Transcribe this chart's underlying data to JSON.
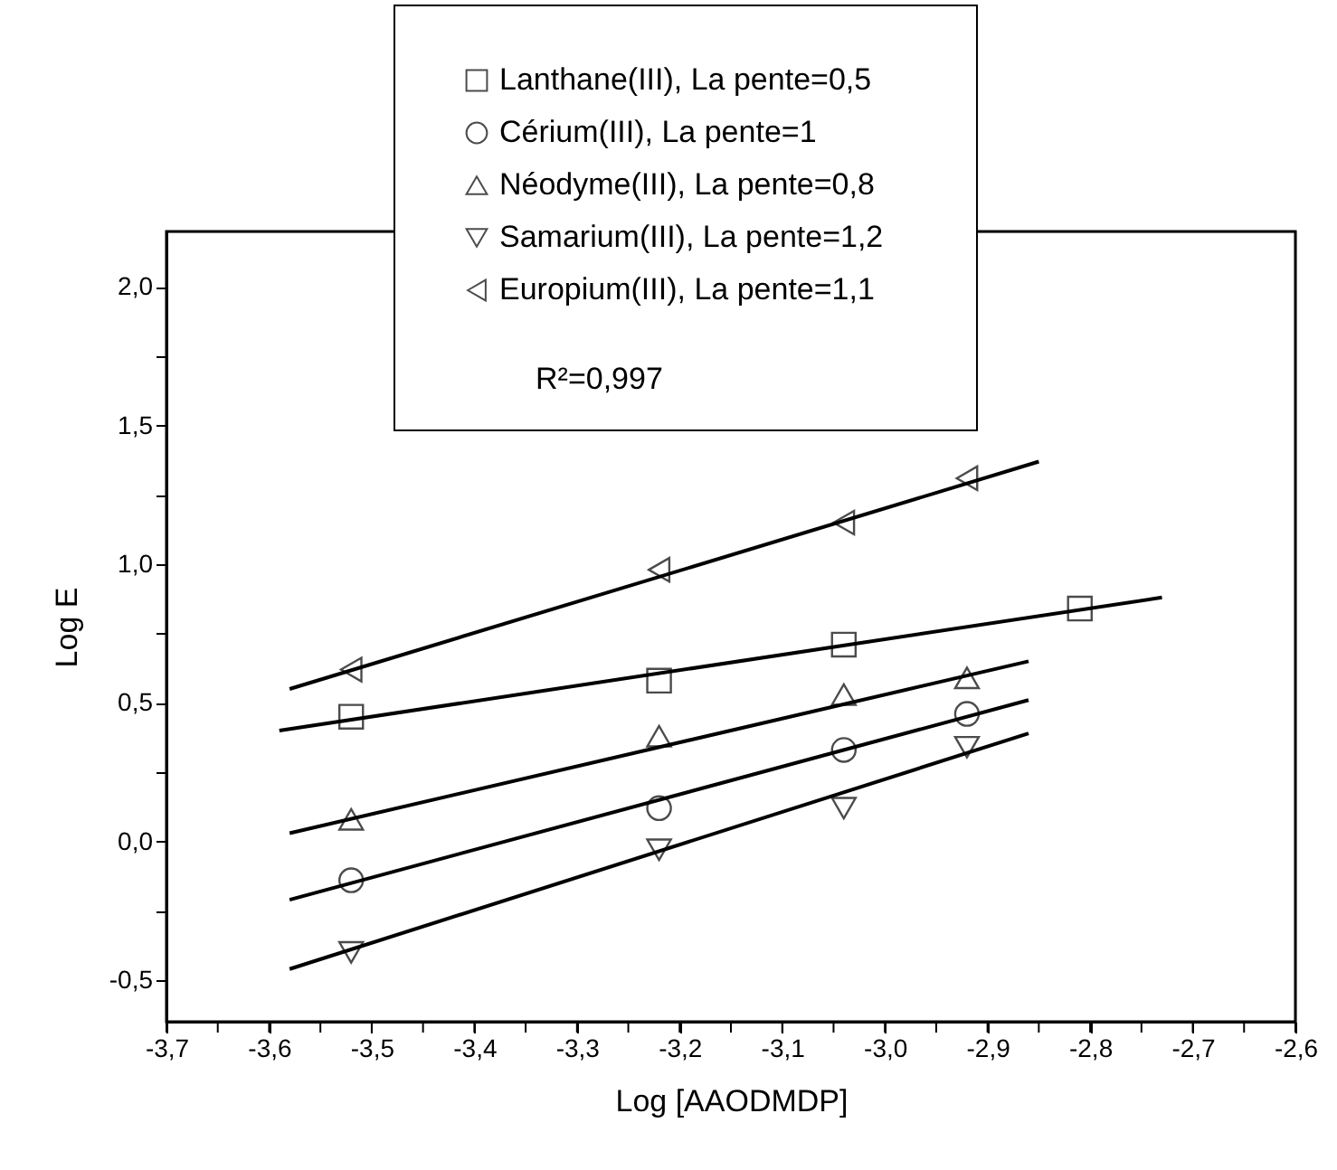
{
  "chart_data": {
    "type": "scatter",
    "xlabel": "Log [AAODMDP]",
    "ylabel": "Log E",
    "xlim": [
      -3.7,
      -2.6
    ],
    "ylim": [
      -0.65,
      2.2
    ],
    "xticks": [
      {
        "value": -3.7,
        "label": "-3,7"
      },
      {
        "value": -3.65,
        "label": null
      },
      {
        "value": -3.6,
        "label": "-3,6"
      },
      {
        "value": -3.55,
        "label": null
      },
      {
        "value": -3.5,
        "label": "-3,5"
      },
      {
        "value": -3.45,
        "label": null
      },
      {
        "value": -3.4,
        "label": "-3,4"
      },
      {
        "value": -3.35,
        "label": null
      },
      {
        "value": -3.3,
        "label": "-3,3"
      },
      {
        "value": -3.25,
        "label": null
      },
      {
        "value": -3.2,
        "label": "-3,2"
      },
      {
        "value": -3.15,
        "label": null
      },
      {
        "value": -3.1,
        "label": "-3,1"
      },
      {
        "value": -3.05,
        "label": null
      },
      {
        "value": -3.0,
        "label": "-3,0"
      },
      {
        "value": -2.95,
        "label": null
      },
      {
        "value": -2.9,
        "label": "-2,9"
      },
      {
        "value": -2.85,
        "label": null
      },
      {
        "value": -2.8,
        "label": "-2,8"
      },
      {
        "value": -2.75,
        "label": null
      },
      {
        "value": -2.7,
        "label": "-2,7"
      },
      {
        "value": -2.65,
        "label": null
      },
      {
        "value": -2.6,
        "label": "-2,6"
      }
    ],
    "yticks": [
      {
        "value": -0.5,
        "label": "-0,5"
      },
      {
        "value": -0.25,
        "label": null
      },
      {
        "value": 0.0,
        "label": "0,0"
      },
      {
        "value": 0.25,
        "label": null
      },
      {
        "value": 0.5,
        "label": "0,5"
      },
      {
        "value": 0.75,
        "label": null
      },
      {
        "value": 1.0,
        "label": "1,0"
      },
      {
        "value": 1.25,
        "label": null
      },
      {
        "value": 1.5,
        "label": "1,5"
      },
      {
        "value": 1.75,
        "label": null
      },
      {
        "value": 2.0,
        "label": "2,0"
      }
    ],
    "grid": false,
    "legend": "top",
    "annotations": [
      "R²=0,997"
    ],
    "series": [
      {
        "name": "Lanthane(III), La pente=0,5",
        "color": "#000000",
        "marker": "square",
        "x": [
          -3.52,
          -3.22,
          -3.04,
          -2.81
        ],
        "values": [
          0.45,
          0.58,
          0.71,
          0.84
        ]
      },
      {
        "name": "Cérium(III), La pente=1",
        "color": "#000000",
        "marker": "circle",
        "x": [
          -3.52,
          -3.22,
          -3.04,
          -2.92
        ],
        "values": [
          -0.14,
          0.12,
          0.33,
          0.46
        ]
      },
      {
        "name": "Néodyme(III), La pente=0,8",
        "color": "#000000",
        "marker": "triangle-up",
        "x": [
          -3.52,
          -3.22,
          -3.04,
          -2.92
        ],
        "values": [
          0.08,
          0.38,
          0.53,
          0.59
        ]
      },
      {
        "name": "Samarium(III), La pente=1,2",
        "color": "#000000",
        "marker": "triangle-down",
        "x": [
          -3.52,
          -3.22,
          -3.04,
          -2.92
        ],
        "values": [
          -0.4,
          -0.03,
          0.12,
          0.34
        ]
      },
      {
        "name": "Europium(III), La pente=1,1",
        "color": "#000000",
        "marker": "triangle-left",
        "x": [
          -3.52,
          -3.22,
          -3.04,
          -2.92
        ],
        "values": [
          0.62,
          0.98,
          1.15,
          1.31
        ]
      },
      {
        "type": "line",
        "color": "#000000",
        "x": [
          -3.59,
          -2.73
        ],
        "values": [
          0.4,
          0.88
        ]
      },
      {
        "type": "line",
        "color": "#000000",
        "x": [
          -3.58,
          -2.86
        ],
        "values": [
          -0.21,
          0.51
        ]
      },
      {
        "type": "line",
        "color": "#000000",
        "x": [
          -3.58,
          -2.86
        ],
        "values": [
          0.03,
          0.65
        ]
      },
      {
        "type": "line",
        "color": "#000000",
        "x": [
          -3.58,
          -2.86
        ],
        "values": [
          -0.46,
          0.39
        ]
      },
      {
        "type": "line",
        "color": "#000000",
        "x": [
          -3.58,
          -2.85
        ],
        "values": [
          0.55,
          1.37
        ]
      }
    ]
  }
}
